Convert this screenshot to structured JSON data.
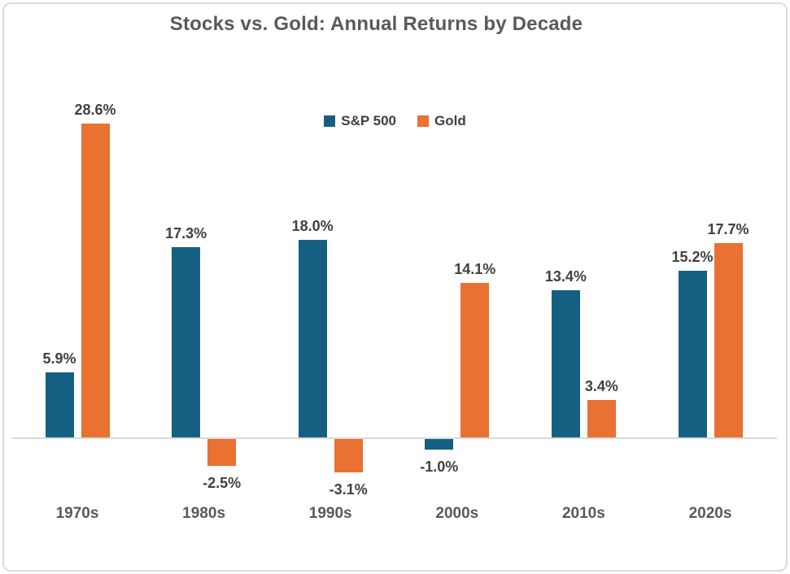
{
  "chart_data": {
    "type": "bar",
    "title": "Stocks vs. Gold: Annual Returns by Decade",
    "categories": [
      "1970s",
      "1980s",
      "1990s",
      "2000s",
      "2010s",
      "2020s"
    ],
    "series": [
      {
        "name": "S&P 500",
        "color": "#156082",
        "values": [
          5.9,
          17.3,
          18.0,
          -1.0,
          13.4,
          15.2
        ],
        "labels": [
          "5.9%",
          "17.3%",
          "18.0%",
          "-1.0%",
          "13.4%",
          "15.2%"
        ]
      },
      {
        "name": "Gold",
        "color": "#E97132",
        "values": [
          28.6,
          -2.5,
          -3.1,
          14.1,
          3.4,
          17.7
        ],
        "labels": [
          "28.6%",
          "-2.5%",
          "-3.1%",
          "14.1%",
          "3.4%",
          "17.7%"
        ]
      }
    ],
    "legend_position": "top-center",
    "grid": false,
    "value_axis_visible": false,
    "axis_line_color": "#d9d9d9",
    "text_colors": {
      "title": "#595959",
      "value_labels": "#404040",
      "category_labels": "#595959"
    }
  }
}
